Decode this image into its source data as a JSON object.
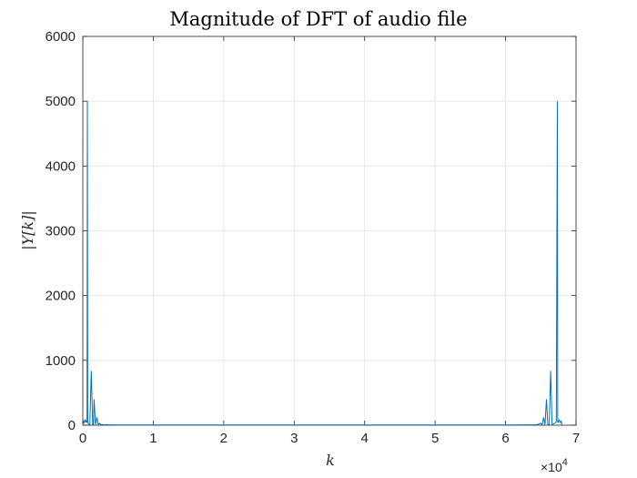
{
  "chart_data": {
    "type": "line",
    "title": "Magnitude of DFT of audio file",
    "xlabel": "k",
    "ylabel": "|Y[k]|",
    "xlim": [
      0,
      7
    ],
    "ylim": [
      0,
      6000
    ],
    "x_exponent_label": "×10",
    "x_exponent_power": "4",
    "xticks": [
      "0",
      "1",
      "2",
      "3",
      "4",
      "5",
      "6",
      "7"
    ],
    "yticks": [
      "0",
      "1000",
      "2000",
      "3000",
      "4000",
      "5000",
      "6000"
    ],
    "grid": true,
    "line_color": "#0072BD",
    "series": [
      {
        "x": [
          0,
          0.01,
          0.02,
          0.03,
          0.04,
          0.05,
          0.06,
          0.065,
          0.07,
          0.075,
          0.08,
          0.1,
          0.12,
          0.14,
          0.15,
          0.16,
          0.18,
          0.2,
          0.22,
          0.24,
          0.26,
          0.28,
          0.3,
          0.32,
          0.34,
          0.36,
          0.38,
          0.4,
          0.5,
          0.6,
          0.8,
          1,
          1.5,
          2,
          2.5,
          3,
          3.5,
          4,
          4.5,
          5,
          5.5,
          6,
          6.3,
          6.4,
          6.45,
          6.5,
          6.52,
          6.54,
          6.56,
          6.58,
          6.6,
          6.62,
          6.64,
          6.66,
          6.68,
          6.7,
          6.72,
          6.735,
          6.74,
          6.745,
          6.75,
          6.76,
          6.78,
          6.79,
          6.8
        ],
        "y": [
          0,
          60,
          40,
          80,
          50,
          70,
          40,
          5000,
          60,
          30,
          20,
          10,
          840,
          10,
          5,
          400,
          10,
          120,
          5,
          30,
          5,
          10,
          5,
          5,
          10,
          5,
          5,
          5,
          3,
          3,
          3,
          3,
          3,
          3,
          3,
          3,
          3,
          3,
          3,
          3,
          3,
          3,
          5,
          5,
          10,
          30,
          5,
          120,
          10,
          400,
          5,
          10,
          840,
          10,
          20,
          30,
          60,
          5000,
          40,
          70,
          50,
          80,
          40,
          60,
          0
        ]
      }
    ]
  }
}
